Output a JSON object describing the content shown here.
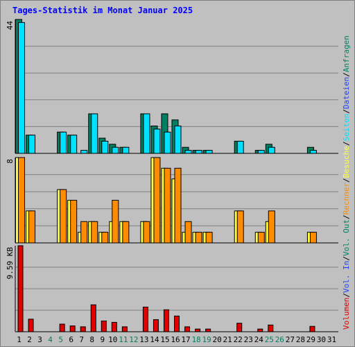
{
  "chart_data": [
    {
      "type": "bar",
      "title": "Tages-Statistik im Monat Januar 2025",
      "ymax_label": "44",
      "ylim": [
        0,
        44
      ],
      "series": [
        {
          "name": "Anfragen",
          "color": "#008060",
          "values": [
            44,
            6,
            0,
            0,
            7,
            6,
            0,
            13,
            5,
            3,
            2,
            0,
            13,
            9,
            13,
            11,
            2,
            1,
            1,
            0,
            0,
            4,
            0,
            1,
            3,
            0,
            0,
            0,
            2,
            0,
            0
          ]
        },
        {
          "name": "Dateien",
          "color": "#00e0ff",
          "values": [
            43,
            6,
            0,
            0,
            7,
            6,
            1,
            13,
            4,
            2,
            2,
            0,
            13,
            8,
            7,
            9,
            1,
            1,
            1,
            0,
            0,
            4,
            0,
            1,
            2,
            0,
            0,
            0,
            1,
            0,
            0
          ]
        }
      ]
    },
    {
      "type": "bar",
      "ymax_label": "8",
      "ylim": [
        0,
        8
      ],
      "series": [
        {
          "name": "Seiten",
          "color": "#ffff40",
          "values": [
            8,
            3,
            0,
            0,
            5,
            4,
            1,
            2,
            1,
            2,
            2,
            0,
            2,
            8,
            7,
            6,
            1,
            1,
            1,
            0,
            0,
            3,
            0,
            1,
            2,
            0,
            0,
            0,
            1,
            0,
            0
          ]
        },
        {
          "name": "Besuche",
          "color": "#ff8c00",
          "values": [
            8,
            3,
            0,
            0,
            5,
            4,
            2,
            2,
            1,
            4,
            2,
            0,
            2,
            8,
            7,
            7,
            2,
            1,
            1,
            0,
            0,
            3,
            0,
            1,
            3,
            0,
            0,
            0,
            1,
            0,
            0
          ]
        }
      ]
    },
    {
      "type": "bar",
      "ymax_label": "9.59 KB",
      "ylim": [
        0,
        9.59
      ],
      "series": [
        {
          "name": "Volumen",
          "color": "#e00000",
          "values": [
            9.59,
            1.4,
            0,
            0,
            0.85,
            0.65,
            0.55,
            3.0,
            1.2,
            1.05,
            0.55,
            0,
            2.75,
            1.35,
            2.45,
            1.75,
            0.55,
            0.3,
            0.3,
            0,
            0,
            0.95,
            0,
            0.3,
            0.75,
            0,
            0,
            0,
            0.6,
            0,
            0
          ]
        }
      ]
    }
  ],
  "x_labels": [
    "1",
    "2",
    "3",
    "4",
    "5",
    "6",
    "7",
    "8",
    "9",
    "10",
    "11",
    "12",
    "13",
    "14",
    "15",
    "16",
    "17",
    "18",
    "19",
    "20",
    "21",
    "22",
    "23",
    "24",
    "25",
    "26",
    "27",
    "28",
    "29",
    "30",
    "31"
  ],
  "weekend_days": [
    4,
    5,
    11,
    12,
    18,
    19,
    25,
    26
  ],
  "colors": {
    "title": "#0000ff",
    "weekday": "#000000",
    "weekend": "#008060",
    "grid": "#808080",
    "panel": "#c0c0c0"
  },
  "right_legend": [
    {
      "name": "Volumen",
      "color": "#e00000"
    },
    {
      "name": "Vol. In",
      "color": "#2040ff"
    },
    {
      "name": "Vol. Out",
      "color": "#008060"
    },
    {
      "name": "Rechner",
      "color": "#ff8c00"
    },
    {
      "name": "Besuche",
      "color": "#ffff40"
    },
    {
      "name": "Seiten",
      "color": "#00e0ff"
    },
    {
      "name": "Dateien",
      "color": "#2040ff"
    },
    {
      "name": "Anfragen",
      "color": "#008060"
    }
  ],
  "legend_separator": "/"
}
